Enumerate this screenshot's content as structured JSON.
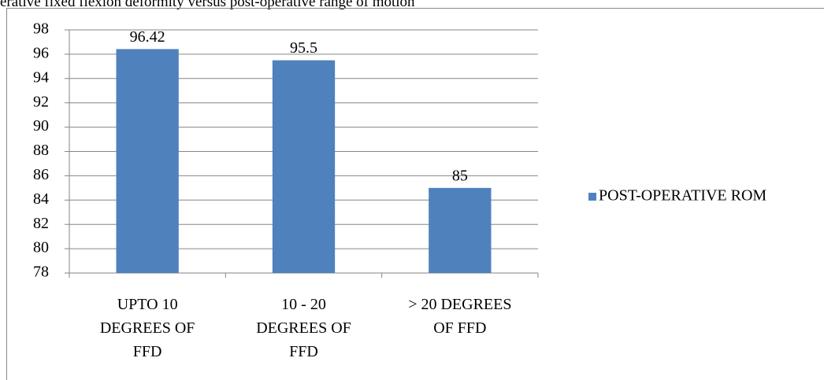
{
  "chart_data": {
    "type": "bar",
    "title": "erative fixed flexion deformity versus post-operative range of motion",
    "categories": [
      "UPTO 10 DEGREES OF FFD",
      "10 - 20 DEGREES OF FFD",
      "> 20 DEGREES OF FFD"
    ],
    "series": [
      {
        "name": "POST-OPERATIVE ROM",
        "color": "#4f81bd",
        "values": [
          96.42,
          95.5,
          85
        ]
      }
    ],
    "ylim": [
      78,
      98
    ],
    "yticks": [
      78,
      80,
      82,
      84,
      86,
      88,
      90,
      92,
      94,
      96,
      98
    ],
    "grid": true,
    "legend": "right"
  }
}
